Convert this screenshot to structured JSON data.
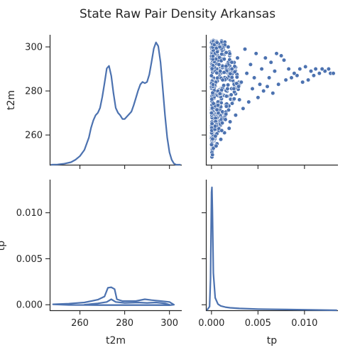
{
  "chart_data": {
    "type": "pairplot",
    "title": "State Raw Pair Density Arkansas",
    "variables": [
      "t2m",
      "tp"
    ],
    "ranges": {
      "t2m": [
        246.5,
        305.5
      ],
      "tp": [
        -0.0006,
        0.0136
      ],
      "tp_diag_density": [
        0,
        1.0
      ]
    },
    "ticks": {
      "t2m": [
        260,
        280,
        300
      ],
      "tp": [
        0.0,
        0.005,
        0.01
      ]
    },
    "tick_labels": {
      "t2m": [
        "260",
        "280",
        "300"
      ],
      "tp": [
        "0.000",
        "0.005",
        "0.010"
      ]
    },
    "t2m_density": {
      "x": [
        247,
        250,
        253,
        256,
        258,
        260,
        262,
        264,
        265,
        266,
        267,
        268,
        269,
        270,
        271,
        272,
        273,
        274,
        275,
        276,
        277,
        278,
        279,
        280,
        281,
        282,
        283,
        284,
        285,
        286,
        287,
        288,
        289,
        290,
        291,
        292,
        293,
        294,
        295,
        296,
        297,
        298,
        299,
        300,
        301,
        302,
        303,
        304,
        305
      ],
      "y": [
        0.0,
        0.002,
        0.008,
        0.02,
        0.04,
        0.07,
        0.12,
        0.22,
        0.3,
        0.36,
        0.4,
        0.42,
        0.46,
        0.55,
        0.66,
        0.78,
        0.8,
        0.72,
        0.58,
        0.46,
        0.42,
        0.4,
        0.37,
        0.37,
        0.39,
        0.41,
        0.43,
        0.48,
        0.54,
        0.6,
        0.65,
        0.67,
        0.66,
        0.67,
        0.73,
        0.83,
        0.94,
        0.99,
        0.96,
        0.83,
        0.62,
        0.4,
        0.22,
        0.1,
        0.04,
        0.01,
        0.0,
        0.0,
        0.0
      ]
    },
    "tp_density": {
      "x": [
        -0.0005,
        -0.0002,
        -0.0001,
        0.0,
        5e-05,
        0.0001,
        0.0002,
        0.0004,
        0.0007,
        0.001,
        0.0015,
        0.002,
        0.003,
        0.005,
        0.008,
        0.011,
        0.0135
      ],
      "y": [
        0.0,
        0.03,
        0.25,
        0.95,
        0.99,
        0.8,
        0.3,
        0.1,
        0.05,
        0.035,
        0.025,
        0.02,
        0.015,
        0.01,
        0.006,
        0.003,
        0.0
      ]
    },
    "kde_contours": [
      {
        "t2m": [
          248,
          255,
          262,
          268,
          271,
          272.5,
          274,
          275.5,
          276.5,
          279,
          285,
          289,
          292,
          296,
          300,
          302,
          300,
          292,
          282,
          265,
          255,
          248
        ],
        "tp": [
          5e-05,
          0.00012,
          0.00025,
          0.00055,
          0.0009,
          0.00185,
          0.0019,
          0.0017,
          0.0006,
          0.0004,
          0.0004,
          0.0006,
          0.0005,
          0.0004,
          0.0003,
          0.0,
          -5e-05,
          -4e-05,
          -4e-05,
          -3e-05,
          -2e-05,
          5e-05
        ]
      },
      {
        "t2m": [
          262,
          268,
          272,
          274,
          276,
          280,
          286,
          290,
          294,
          298,
          300,
          296,
          288,
          278,
          268,
          262
        ],
        "tp": [
          0.0,
          0.00015,
          0.0003,
          0.0006,
          0.0003,
          0.0002,
          0.00025,
          0.0002,
          0.00025,
          0.00015,
          0.0,
          -3e-05,
          -3e-05,
          -3e-05,
          -3e-05,
          0.0
        ]
      }
    ],
    "scatter": {
      "type": "scatter",
      "x_var": "tp",
      "y_var": "t2m",
      "dense_region": {
        "tp": [
          0.0,
          0.0035
        ],
        "t2m": [
          253,
          303
        ]
      },
      "points": [
        [
          0.0128,
          288
        ],
        [
          0.0131,
          288
        ],
        [
          0.0126,
          290
        ],
        [
          0.0122,
          289
        ],
        [
          0.0119,
          290
        ],
        [
          0.0116,
          288
        ],
        [
          0.0112,
          290
        ],
        [
          0.011,
          287
        ],
        [
          0.0107,
          289
        ],
        [
          0.0104,
          285
        ],
        [
          0.0101,
          291
        ],
        [
          0.0098,
          284
        ],
        [
          0.0095,
          290
        ],
        [
          0.0092,
          287
        ],
        [
          0.0089,
          288
        ],
        [
          0.0086,
          286
        ],
        [
          0.0083,
          290
        ],
        [
          0.008,
          285
        ],
        [
          0.0078,
          294
        ],
        [
          0.0075,
          296
        ],
        [
          0.0072,
          283
        ],
        [
          0.007,
          297
        ],
        [
          0.0068,
          289
        ],
        [
          0.0066,
          279
        ],
        [
          0.0064,
          293
        ],
        [
          0.0062,
          286
        ],
        [
          0.006,
          282
        ],
        [
          0.0058,
          295
        ],
        [
          0.0056,
          280
        ],
        [
          0.0054,
          290
        ],
        [
          0.0052,
          283
        ],
        [
          0.005,
          277
        ],
        [
          0.0048,
          297
        ],
        [
          0.0046,
          286
        ],
        [
          0.0044,
          281
        ],
        [
          0.0042,
          292
        ],
        [
          0.004,
          275
        ],
        [
          0.0038,
          288
        ],
        [
          0.0036,
          299
        ],
        [
          0.0034,
          272
        ],
        [
          0.0032,
          284
        ],
        [
          0.003,
          276
        ],
        [
          0.0028,
          295
        ],
        [
          0.0026,
          269
        ],
        [
          0.0024,
          281
        ],
        [
          0.0022,
          290
        ],
        [
          0.002,
          266
        ],
        [
          0.0018,
          300
        ],
        [
          0.0016,
          273
        ],
        [
          0.0014,
          261
        ],
        [
          0.0012,
          285
        ],
        [
          0.001,
          258
        ],
        [
          0.0008,
          292
        ],
        [
          0.0006,
          256
        ],
        [
          0.0004,
          264
        ],
        [
          0.0002,
          254
        ],
        [
          5e-05,
          252
        ],
        [
          5e-05,
          250
        ],
        [
          0.0001,
          251
        ],
        [
          0.0003,
          301
        ],
        [
          0.0006,
          302
        ],
        [
          0.0009,
          300
        ],
        [
          0.0005,
          255
        ],
        [
          0.0011,
          262
        ],
        [
          0.0015,
          267
        ],
        [
          0.0019,
          263
        ]
      ]
    }
  }
}
